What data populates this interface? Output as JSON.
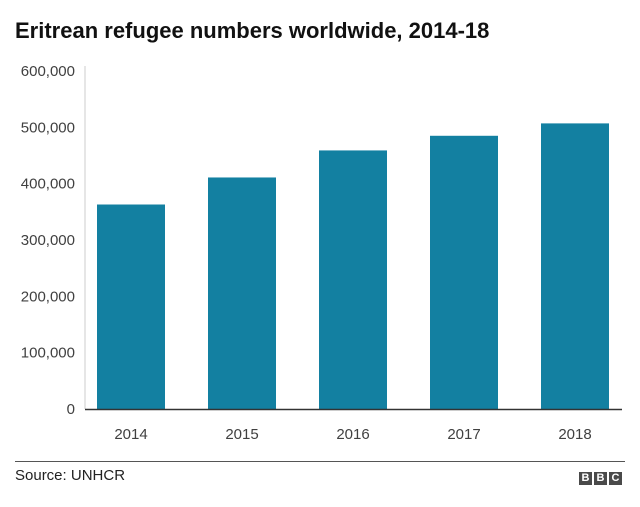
{
  "chart_data": {
    "type": "bar",
    "title": "Eritrean refugee numbers worldwide, 2014-18",
    "categories": [
      "2014",
      "2015",
      "2016",
      "2017",
      "2018"
    ],
    "values": [
      363000,
      411000,
      459000,
      485000,
      507000
    ],
    "ylim": [
      0,
      600000
    ],
    "yticks": [
      "0",
      "100,000",
      "200,000",
      "300,000",
      "400,000",
      "500,000",
      "600,000"
    ],
    "xlabel": "",
    "ylabel": "",
    "grid": false,
    "bar_color": "#1380A1"
  },
  "footer": {
    "source": "Source: UNHCR",
    "logo": [
      "B",
      "B",
      "C"
    ]
  }
}
